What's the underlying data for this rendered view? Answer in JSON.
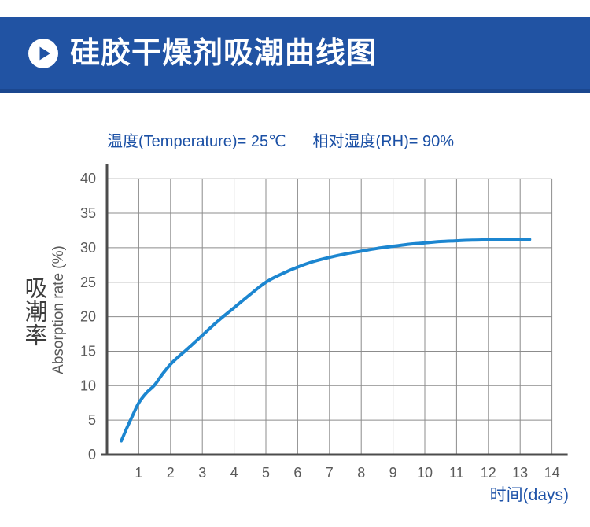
{
  "header": {
    "title": "硅胶干燥剂吸潮曲线图",
    "bg_color": "#2153a3",
    "bg_edge_color": "#1b478f",
    "icon": "play-icon"
  },
  "conditions": {
    "temperature": "温度(Temperature)= 25℃",
    "humidity": "相对湿度(RH)= 90%"
  },
  "chart_data": {
    "type": "line",
    "title": "硅胶干燥剂吸潮曲线图",
    "xlabel": "时间(days)",
    "ylabel_cn": "吸潮率",
    "ylabel_en": "Absorption rate (%)",
    "xlim": [
      0,
      14
    ],
    "ylim": [
      0,
      40
    ],
    "xticks": [
      1,
      2,
      3,
      4,
      5,
      6,
      7,
      8,
      9,
      10,
      11,
      12,
      13,
      14
    ],
    "yticks": [
      0,
      5,
      10,
      15,
      20,
      25,
      30,
      35,
      40
    ],
    "grid": true,
    "legend": false,
    "style": {
      "curve_color": "#1c86d0",
      "grid_color": "#8c8c8c",
      "axis_color": "#4c4c4c",
      "tick_color": "#5a5a5a"
    },
    "series": [
      {
        "name": "absorption-curve",
        "color": "#1c86d0",
        "x": [
          0.45,
          0.6,
          0.8,
          1,
          1.25,
          1.5,
          1.75,
          2,
          2.25,
          2.5,
          3,
          3.5,
          4,
          4.5,
          5,
          5.5,
          6,
          6.5,
          7,
          7.5,
          8,
          8.5,
          9,
          9.5,
          10,
          10.5,
          11,
          11.5,
          12,
          12.5,
          13,
          13.3
        ],
        "y": [
          2,
          3.6,
          5.6,
          7.5,
          9,
          10.1,
          11.7,
          13.1,
          14.2,
          15.2,
          17.3,
          19.4,
          21.3,
          23.2,
          25,
          26.2,
          27.2,
          28,
          28.6,
          29.1,
          29.5,
          29.9,
          30.2,
          30.5,
          30.7,
          30.9,
          31,
          31.1,
          31.15,
          31.2,
          31.2,
          31.2
        ]
      }
    ]
  }
}
